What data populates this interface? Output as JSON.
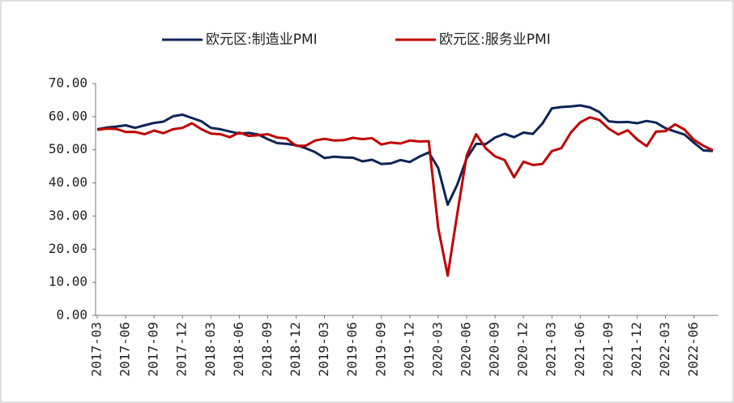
{
  "chart_data": {
    "type": "line",
    "categories": [
      "2017-03",
      null,
      null,
      "2017-06",
      null,
      null,
      "2017-09",
      null,
      null,
      "2017-12",
      null,
      null,
      "2018-03",
      null,
      null,
      "2018-06",
      null,
      null,
      "2018-09",
      null,
      null,
      "2018-12",
      null,
      null,
      "2019-03",
      null,
      null,
      "2019-06",
      null,
      null,
      "2019-09",
      null,
      null,
      "2019-12",
      null,
      null,
      "2020-03",
      null,
      null,
      "2020-06",
      null,
      null,
      "2020-09",
      null,
      null,
      "2020-12",
      null,
      null,
      "2021-03",
      null,
      null,
      "2021-06",
      null,
      null,
      "2021-09",
      null,
      null,
      "2021-12",
      null,
      null,
      "2022-03",
      null,
      null,
      "2022-06",
      null,
      null
    ],
    "series": [
      {
        "name": "欧元区:制造业PMI",
        "color": "#0d2455",
        "values": [
          56.2,
          56.7,
          57.0,
          57.4,
          56.6,
          57.4,
          58.1,
          58.5,
          60.1,
          60.6,
          59.6,
          58.6,
          56.6,
          56.2,
          55.5,
          54.9,
          55.1,
          54.6,
          53.2,
          52.0,
          51.8,
          51.4,
          50.5,
          49.3,
          47.5,
          47.9,
          47.7,
          47.6,
          46.5,
          47.0,
          45.7,
          45.9,
          46.9,
          46.3,
          47.9,
          49.2,
          44.5,
          33.4,
          39.4,
          47.4,
          51.8,
          51.7,
          53.7,
          54.8,
          53.8,
          55.2,
          54.8,
          57.9,
          62.5,
          62.9,
          63.1,
          63.4,
          62.8,
          61.4,
          58.6,
          58.3,
          58.4,
          58.0,
          58.7,
          58.2,
          56.5,
          55.5,
          54.6,
          52.1,
          49.8,
          49.6
        ]
      },
      {
        "name": "欧元区:服务业PMI",
        "color": "#c00000",
        "values": [
          56.0,
          56.4,
          56.3,
          55.4,
          55.4,
          54.7,
          55.8,
          55.0,
          56.2,
          56.6,
          58.0,
          56.2,
          54.9,
          54.7,
          53.8,
          55.2,
          54.2,
          54.4,
          54.7,
          53.7,
          53.4,
          51.2,
          51.2,
          52.8,
          53.3,
          52.8,
          52.9,
          53.6,
          53.2,
          53.5,
          51.6,
          52.2,
          51.9,
          52.8,
          52.5,
          52.6,
          26.4,
          12.0,
          30.5,
          48.3,
          54.7,
          50.5,
          48.0,
          46.9,
          41.7,
          46.4,
          45.4,
          45.7,
          49.6,
          50.5,
          55.2,
          58.3,
          59.8,
          59.0,
          56.4,
          54.6,
          55.9,
          53.1,
          51.1,
          55.5,
          55.6,
          57.7,
          56.1,
          53.0,
          51.2,
          49.8
        ]
      }
    ],
    "ylim": [
      0,
      70
    ],
    "yticks": [
      {
        "value": 0,
        "label": "0.00"
      },
      {
        "value": 10,
        "label": "10.00"
      },
      {
        "value": 20,
        "label": "20.00"
      },
      {
        "value": 30,
        "label": "30.00"
      },
      {
        "value": 40,
        "label": "40.00"
      },
      {
        "value": 50,
        "label": "50.00"
      },
      {
        "value": 60,
        "label": "60.00"
      },
      {
        "value": 70,
        "label": "70.00"
      }
    ],
    "grid": false,
    "legend": "top"
  }
}
